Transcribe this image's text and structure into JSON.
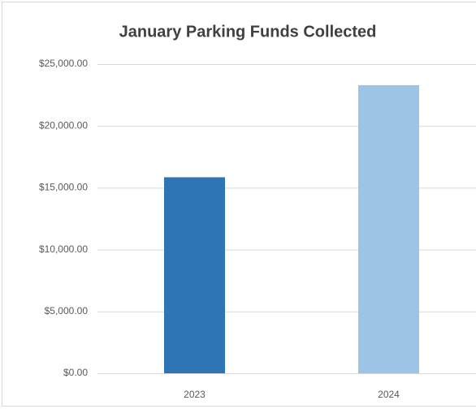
{
  "chart_data": {
    "type": "bar",
    "title": "January Parking Funds Collected",
    "categories": [
      "2023",
      "2024"
    ],
    "values": [
      15850,
      23300
    ],
    "colors": [
      "#2e75b6",
      "#9dc3e6"
    ],
    "ylim": [
      0,
      25000
    ],
    "yticks": [
      {
        "value": 0,
        "label": "$0.00"
      },
      {
        "value": 5000,
        "label": "$5,000.00"
      },
      {
        "value": 10000,
        "label": "$10,000.00"
      },
      {
        "value": 15000,
        "label": "$15,000.00"
      },
      {
        "value": 20000,
        "label": "$20,000.00"
      },
      {
        "value": 25000,
        "label": "$25,000.00"
      }
    ],
    "grid": true
  }
}
